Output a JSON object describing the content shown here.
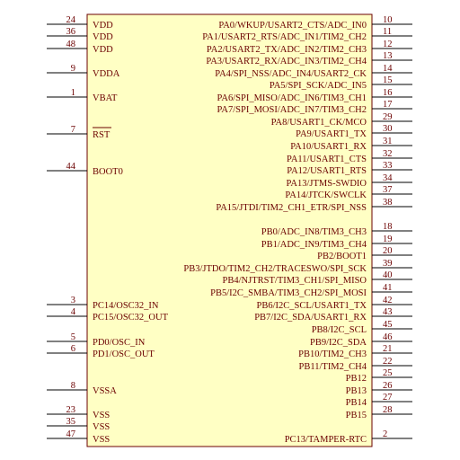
{
  "colors": {
    "body_fill": "#ffffc4",
    "outline": "#6b0000",
    "text": "#6b0000",
    "pin": "#000000"
  },
  "left_pins": [
    {
      "num": "24",
      "name": "VDD"
    },
    {
      "num": "36",
      "name": "VDD"
    },
    {
      "num": "48",
      "name": "VDD"
    },
    {
      "num": "9",
      "name": "VDDA"
    },
    {
      "num": "1",
      "name": "VBAT"
    },
    {
      "num": "7",
      "name": "RST",
      "overbar": true
    },
    {
      "num": "44",
      "name": "BOOT0"
    },
    {
      "num": "3",
      "name": "PC14/OSC32_IN"
    },
    {
      "num": "4",
      "name": "PC15/OSC32_OUT"
    },
    {
      "num": "5",
      "name": "PD0/OSC_IN"
    },
    {
      "num": "6",
      "name": "PD1/OSC_OUT"
    },
    {
      "num": "8",
      "name": "VSSA"
    },
    {
      "num": "23",
      "name": "VSS"
    },
    {
      "num": "35",
      "name": "VSS"
    },
    {
      "num": "47",
      "name": "VSS"
    }
  ],
  "right_pins": [
    {
      "num": "10",
      "name": "PA0/WKUP/USART2_CTS/ADC_IN0"
    },
    {
      "num": "11",
      "name": "PA1/USART2_RTS/ADC_IN1/TIM2_CH2"
    },
    {
      "num": "12",
      "name": "PA2/USART2_TX/ADC_IN2/TIM2_CH3"
    },
    {
      "num": "13",
      "name": "PA3/USART2_RX/ADC_IN3/TIM2_CH4"
    },
    {
      "num": "14",
      "name": "PA4/SPI_NSS/ADC_IN4/USART2_CK"
    },
    {
      "num": "15",
      "name": "PA5/SPI_SCK/ADC_IN5"
    },
    {
      "num": "16",
      "name": "PA6/SPI_MISO/ADC_IN6/TIM3_CH1"
    },
    {
      "num": "17",
      "name": "PA7/SPI_MOSI/ADC_IN7/TIM3_CH2"
    },
    {
      "num": "29",
      "name": "PA8/USART1_CK/MCO"
    },
    {
      "num": "30",
      "name": "PA9/USART1_TX"
    },
    {
      "num": "31",
      "name": "PA10/USART1_RX"
    },
    {
      "num": "32",
      "name": "PA11/USART1_CTS"
    },
    {
      "num": "33",
      "name": "PA12/USART1_RTS"
    },
    {
      "num": "34",
      "name": "PA13/JTMS-SWDIO"
    },
    {
      "num": "37",
      "name": "PA14/JTCK/SWCLK"
    },
    {
      "num": "38",
      "name": "PA15/JTDI/TIM2_CH1_ETR/SPI_NSS"
    },
    {
      "num": "18",
      "name": "PB0/ADC_IN8/TIM3_CH3"
    },
    {
      "num": "19",
      "name": "PB1/ADC_IN9/TIM3_CH4"
    },
    {
      "num": "20",
      "name": "PB2/BOOT1"
    },
    {
      "num": "39",
      "name": "PB3/JTDO/TIM2_CH2/TRACESWO/SPI_SCK"
    },
    {
      "num": "40",
      "name": "PB4/NJTRST/TIM3_CH1/SPI_MISO"
    },
    {
      "num": "41",
      "name": "PB5/I2C_SMBA/TIM3_CH2/SPI_MOSI"
    },
    {
      "num": "42",
      "name": "PB6/I2C_SCL/USART1_TX"
    },
    {
      "num": "43",
      "name": "PB7/I2C_SDA/USART1_RX"
    },
    {
      "num": "45",
      "name": "PB8/I2C_SCL"
    },
    {
      "num": "46",
      "name": "PB9/I2C_SDA"
    },
    {
      "num": "21",
      "name": "PB10/TIM2_CH3"
    },
    {
      "num": "22",
      "name": "PB11/TIM2_CH4"
    },
    {
      "num": "25",
      "name": "PB12"
    },
    {
      "num": "26",
      "name": "PB13"
    },
    {
      "num": "27",
      "name": "PB14"
    },
    {
      "num": "28",
      "name": "PB15"
    },
    {
      "num": "2",
      "name": "PC13/TAMPER-RTC"
    }
  ]
}
